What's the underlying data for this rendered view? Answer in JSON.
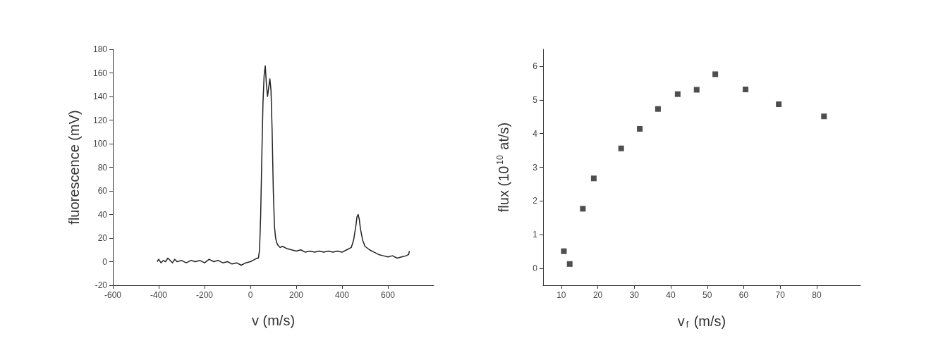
{
  "chart_data": [
    {
      "type": "line",
      "xlabel": "v (m/s)",
      "ylabel": "fluorescence (mV)",
      "xlim": [
        -600,
        800
      ],
      "xticks": [
        -600,
        -400,
        -200,
        0,
        200,
        400,
        600
      ],
      "ylim": [
        -20,
        180
      ],
      "yticks": [
        -20,
        0,
        20,
        40,
        60,
        80,
        100,
        120,
        140,
        160,
        180
      ],
      "grid": false,
      "marker": "none",
      "line_style": "solid",
      "series": [
        {
          "color": "#222222",
          "x": [
            -407,
            -400,
            -390,
            -380,
            -370,
            -360,
            -350,
            -340,
            -330,
            -320,
            -300,
            -280,
            -260,
            -240,
            -220,
            -200,
            -180,
            -160,
            -140,
            -120,
            -100,
            -80,
            -60,
            -40,
            -20,
            0,
            10,
            20,
            30,
            35,
            40,
            45,
            50,
            55,
            60,
            65,
            70,
            75,
            80,
            85,
            90,
            95,
            100,
            105,
            110,
            115,
            120,
            130,
            140,
            160,
            180,
            200,
            220,
            240,
            260,
            280,
            300,
            320,
            340,
            360,
            380,
            400,
            420,
            440,
            450,
            460,
            465,
            470,
            475,
            480,
            490,
            500,
            520,
            540,
            560,
            580,
            600,
            620,
            640,
            660,
            680,
            690,
            694
          ],
          "values": [
            0,
            2,
            -1,
            1,
            0,
            3,
            1,
            -1,
            2,
            0,
            1,
            -1,
            1,
            0,
            1,
            -1,
            2,
            0,
            1,
            -1,
            0,
            -2,
            -1,
            -3,
            -1,
            0,
            1,
            2,
            3,
            3,
            10,
            40,
            90,
            135,
            158,
            166,
            150,
            140,
            148,
            155,
            145,
            110,
            60,
            30,
            20,
            16,
            14,
            12,
            13,
            11,
            10,
            9,
            10,
            8,
            9,
            8,
            9,
            8,
            9,
            8,
            9,
            8,
            10,
            12,
            18,
            30,
            38,
            40,
            36,
            28,
            18,
            13,
            10,
            8,
            6,
            5,
            4,
            5,
            3,
            4,
            5,
            6,
            9
          ]
        }
      ]
    },
    {
      "type": "scatter",
      "xlabel": "v$_{f}$ (m/s)",
      "ylabel": "flux (10$^{10}$ at/s)",
      "xlim": [
        5,
        92
      ],
      "xticks": [
        10,
        20,
        30,
        40,
        50,
        60,
        70,
        80
      ],
      "ylim": [
        -0.5,
        6.5
      ],
      "yticks": [
        0,
        1,
        2,
        3,
        4,
        5,
        6
      ],
      "grid": false,
      "marker": "square",
      "series": [
        {
          "color": "#222222",
          "x": [
            10.7,
            12.3,
            15.9,
            18.9,
            26.4,
            31.5,
            36.5,
            41.9,
            47.1,
            52.2,
            60.5,
            69.6,
            82.0
          ],
          "values": [
            0.51,
            0.13,
            1.77,
            2.67,
            3.56,
            4.14,
            4.73,
            5.17,
            5.3,
            5.76,
            5.31,
            4.87,
            4.51
          ]
        }
      ]
    }
  ]
}
